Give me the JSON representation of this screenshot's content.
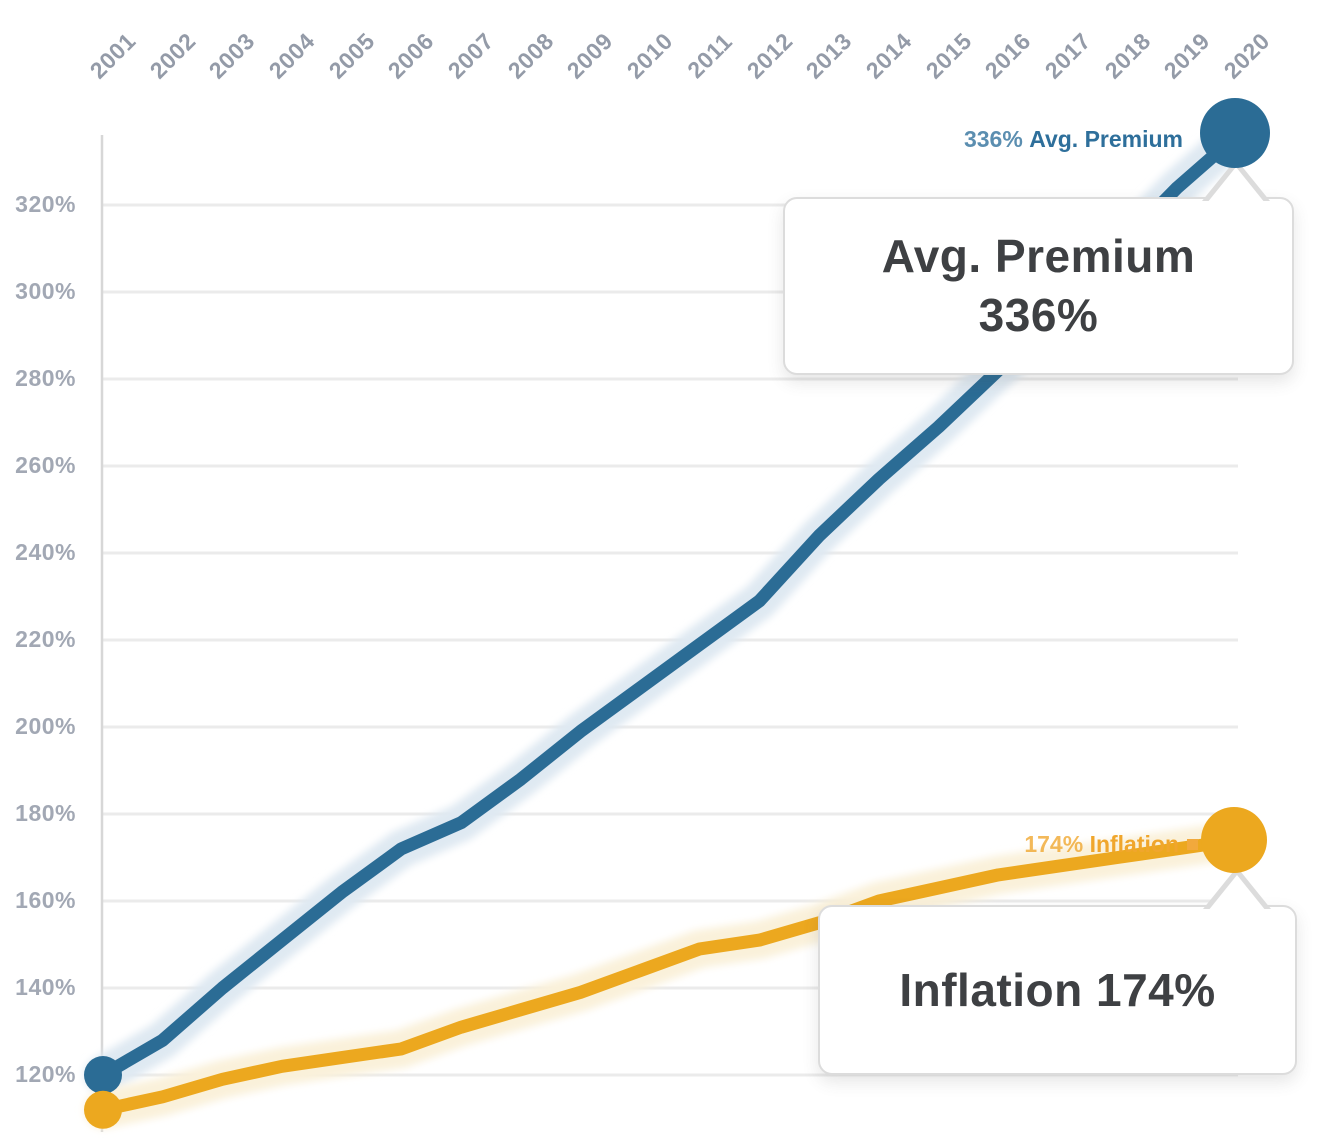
{
  "chart_data": {
    "type": "line",
    "title": "",
    "x": [
      2001,
      2002,
      2003,
      2004,
      2005,
      2006,
      2007,
      2008,
      2009,
      2010,
      2011,
      2012,
      2013,
      2014,
      2015,
      2016,
      2017,
      2018,
      2019,
      2020
    ],
    "series": [
      {
        "name": "Avg. Premium",
        "color": "#2B6C95",
        "halo_color": "#DFE9F2",
        "values": [
          120,
          128,
          140,
          151,
          162,
          172,
          178,
          188,
          199,
          209,
          219,
          229,
          244,
          257,
          269,
          282,
          295,
          310,
          324,
          336
        ],
        "end_value": 336
      },
      {
        "name": "Inflation",
        "color": "#ECA81F",
        "halo_color": "#FAF1DA",
        "values": [
          112,
          115,
          119,
          122,
          124,
          126,
          131,
          135,
          139,
          144,
          149,
          151,
          155,
          160,
          163,
          166,
          168,
          170,
          172,
          174
        ],
        "end_value": 174
      }
    ],
    "y_axis": {
      "tick_values": [
        120,
        140,
        160,
        180,
        200,
        220,
        240,
        260,
        280,
        300,
        320
      ],
      "tick_labels": [
        "120%",
        "140%",
        "160%",
        "180%",
        "200%",
        "220%",
        "240%",
        "260%",
        "280%",
        "300%",
        "320%"
      ],
      "ylim": [
        112,
        336
      ],
      "unit": "%"
    },
    "x_axis_position": "top",
    "grid": true,
    "legend_position": "end-of-line-labels"
  },
  "labels": {
    "premium": {
      "value": "336%",
      "name": "Avg. Premium"
    },
    "inflation": {
      "value": "174%",
      "name": "Inflation"
    }
  },
  "tooltips": {
    "premium": {
      "title": "Avg. Premium",
      "value": "336%"
    },
    "inflation": {
      "text": "Inflation 174%"
    }
  },
  "colors": {
    "premium_line": "#2B6C95",
    "premium_halo": "#DFE9F2",
    "inflation_line": "#ECA81F",
    "inflation_halo": "#FAF1DA",
    "gridline": "#EBEBEB",
    "axis_line": "#D7D7D7",
    "axis_text": "#9AA1AD",
    "tooltip_text": "#3E4043",
    "tooltip_border": "#DCDCDC"
  }
}
